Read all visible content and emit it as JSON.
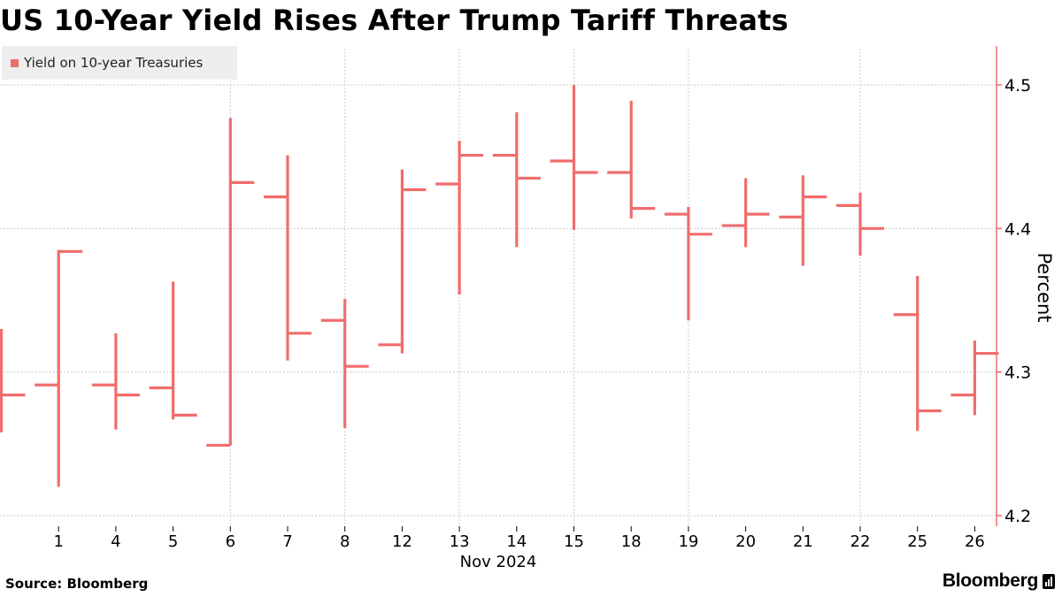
{
  "title": "US 10-Year Yield Rises After Trump Tariff Threats",
  "legend": {
    "label": "Yield on 10-year Treasuries",
    "color": "#f06d6d"
  },
  "source": "Source: Bloomberg",
  "brand": "Bloomberg",
  "brand_icon": "bar-chart-icon",
  "chart_data": {
    "type": "ohlc",
    "title": "US 10-Year Yield Rises After Trump Tariff Threats",
    "ylabel": "Percent",
    "xlabel": "Nov 2024",
    "ylim": [
      4.19,
      4.53
    ],
    "yticks": [
      4.2,
      4.3,
      4.4,
      4.5
    ],
    "ytick_labels": [
      "4.2",
      "4.3",
      "4.4",
      "4.5"
    ],
    "grid": true,
    "legend_position": "top-left",
    "y_axis_position": "right",
    "series": [
      {
        "name": "Yield on 10-year Treasuries",
        "color": "#f06d6d",
        "data": [
          {
            "label": "",
            "open": 4.291,
            "high": 4.33,
            "low": 4.258,
            "close": 4.284
          },
          {
            "label": "1",
            "open": 4.291,
            "high": 4.385,
            "low": 4.22,
            "close": 4.384
          },
          {
            "label": "4",
            "open": 4.291,
            "high": 4.327,
            "low": 4.26,
            "close": 4.284
          },
          {
            "label": "5",
            "open": 4.289,
            "high": 4.363,
            "low": 4.267,
            "close": 4.27
          },
          {
            "label": "6",
            "open": 4.249,
            "high": 4.477,
            "low": 4.249,
            "close": 4.432
          },
          {
            "label": "7",
            "open": 4.422,
            "high": 4.451,
            "low": 4.308,
            "close": 4.327
          },
          {
            "label": "8",
            "open": 4.336,
            "high": 4.351,
            "low": 4.261,
            "close": 4.304
          },
          {
            "label": "12",
            "open": 4.319,
            "high": 4.441,
            "low": 4.313,
            "close": 4.427
          },
          {
            "label": "13",
            "open": 4.431,
            "high": 4.461,
            "low": 4.354,
            "close": 4.451
          },
          {
            "label": "14",
            "open": 4.451,
            "high": 4.481,
            "low": 4.387,
            "close": 4.435
          },
          {
            "label": "15",
            "open": 4.447,
            "high": 4.5,
            "low": 4.399,
            "close": 4.439
          },
          {
            "label": "18",
            "open": 4.439,
            "high": 4.489,
            "low": 4.407,
            "close": 4.414
          },
          {
            "label": "19",
            "open": 4.41,
            "high": 4.415,
            "low": 4.336,
            "close": 4.396
          },
          {
            "label": "20",
            "open": 4.402,
            "high": 4.435,
            "low": 4.387,
            "close": 4.41
          },
          {
            "label": "21",
            "open": 4.408,
            "high": 4.437,
            "low": 4.374,
            "close": 4.422
          },
          {
            "label": "22",
            "open": 4.416,
            "high": 4.425,
            "low": 4.381,
            "close": 4.4
          },
          {
            "label": "25",
            "open": 4.34,
            "high": 4.367,
            "low": 4.259,
            "close": 4.273
          },
          {
            "label": "26",
            "open": 4.284,
            "high": 4.322,
            "low": 4.27,
            "close": 4.313
          }
        ]
      }
    ]
  }
}
